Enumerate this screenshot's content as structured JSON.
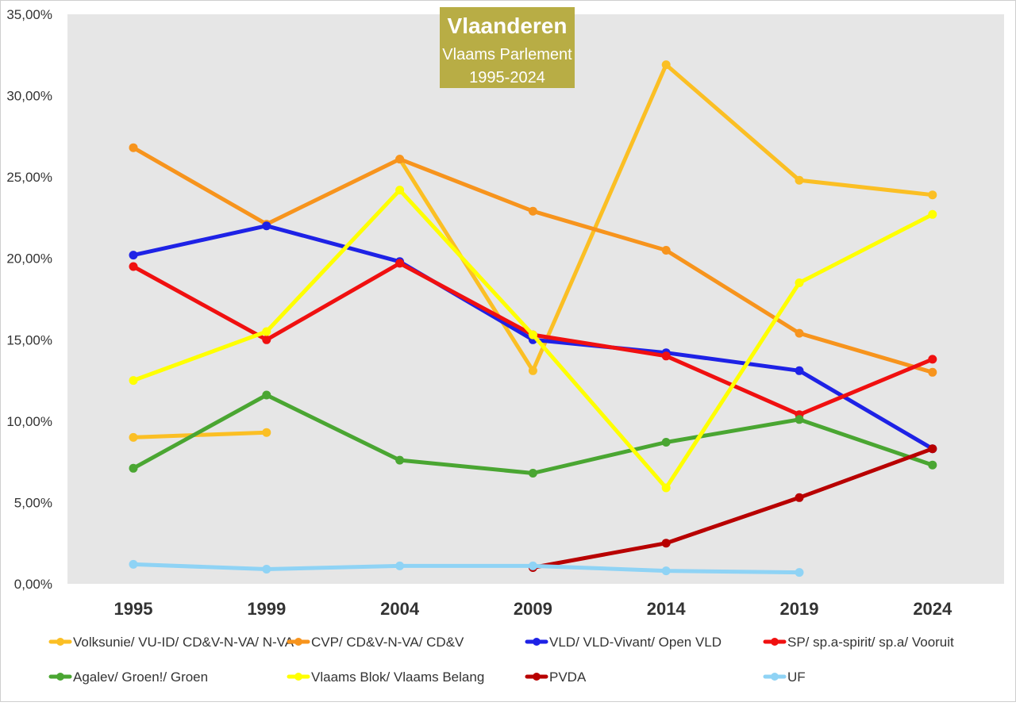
{
  "chart_data": {
    "type": "line",
    "title": "Vlaanderen",
    "subtitle_lines": [
      "Vlaams Parlement",
      "1995-2024"
    ],
    "title_box_color": "#b8ad45",
    "plot_background": "#e6e6e6",
    "xlabel": "",
    "ylabel": "",
    "categories": [
      "1995",
      "1999",
      "2004",
      "2009",
      "2014",
      "2019",
      "2024"
    ],
    "ylim": [
      0,
      35
    ],
    "yticks": [
      0,
      5,
      10,
      15,
      20,
      25,
      30,
      35
    ],
    "ytick_labels": [
      "0,00%",
      "5,00%",
      "10,00%",
      "15,00%",
      "20,00%",
      "25,00%",
      "30,00%",
      "35,00%"
    ],
    "grid": false,
    "legend_position": "bottom",
    "series": [
      {
        "name": "Volksunie/ VU-ID/ CD&V-N-VA/ N-VA",
        "color": "#fbbf24",
        "segments": [
          [
            [
              0,
              9.0
            ],
            [
              1,
              9.3
            ]
          ],
          [
            [
              2,
              26.1
            ],
            [
              3,
              13.1
            ],
            [
              4,
              31.9
            ],
            [
              5,
              24.8
            ],
            [
              6,
              23.9
            ]
          ]
        ]
      },
      {
        "name": "CVP/ CD&V-N-VA/ CD&V",
        "color": "#f7941d",
        "segments": [
          [
            [
              0,
              26.8
            ],
            [
              1,
              22.1
            ],
            [
              2,
              26.1
            ],
            [
              3,
              22.9
            ],
            [
              4,
              20.5
            ],
            [
              5,
              15.4
            ],
            [
              6,
              13.0
            ]
          ]
        ]
      },
      {
        "name": "VLD/ VLD-Vivant/ Open VLD",
        "color": "#1e22e6",
        "segments": [
          [
            [
              0,
              20.2
            ],
            [
              1,
              22.0
            ],
            [
              2,
              19.8
            ],
            [
              3,
              15.0
            ],
            [
              4,
              14.2
            ],
            [
              5,
              13.1
            ],
            [
              6,
              8.3
            ]
          ]
        ]
      },
      {
        "name": "SP/ sp.a-spirit/ sp.a/ Vooruit",
        "color": "#f01010",
        "segments": [
          [
            [
              0,
              19.5
            ],
            [
              1,
              15.0
            ],
            [
              2,
              19.7
            ],
            [
              3,
              15.3
            ],
            [
              4,
              14.0
            ],
            [
              5,
              10.4
            ],
            [
              6,
              13.8
            ]
          ]
        ]
      },
      {
        "name": "Agalev/ Groen!/ Groen",
        "color": "#4aa632",
        "segments": [
          [
            [
              0,
              7.1
            ],
            [
              1,
              11.6
            ],
            [
              2,
              7.6
            ],
            [
              3,
              6.8
            ],
            [
              4,
              8.7
            ],
            [
              5,
              10.1
            ],
            [
              6,
              7.3
            ]
          ]
        ]
      },
      {
        "name": "Vlaams Blok/ Vlaams Belang",
        "color": "#ffff00",
        "segments": [
          [
            [
              0,
              12.5
            ],
            [
              1,
              15.5
            ],
            [
              2,
              24.2
            ],
            [
              3,
              15.3
            ],
            [
              4,
              5.9
            ],
            [
              5,
              18.5
            ],
            [
              6,
              22.7
            ]
          ]
        ]
      },
      {
        "name": "PVDA",
        "color": "#b80000",
        "segments": [
          [
            [
              3,
              1.0
            ],
            [
              4,
              2.5
            ],
            [
              5,
              5.3
            ],
            [
              6,
              8.3
            ]
          ]
        ]
      },
      {
        "name": "UF",
        "color": "#8fd3f5",
        "segments": [
          [
            [
              0,
              1.2
            ],
            [
              1,
              0.9
            ],
            [
              2,
              1.1
            ],
            [
              3,
              1.1
            ],
            [
              4,
              0.8
            ],
            [
              5,
              0.7
            ]
          ]
        ]
      }
    ]
  }
}
